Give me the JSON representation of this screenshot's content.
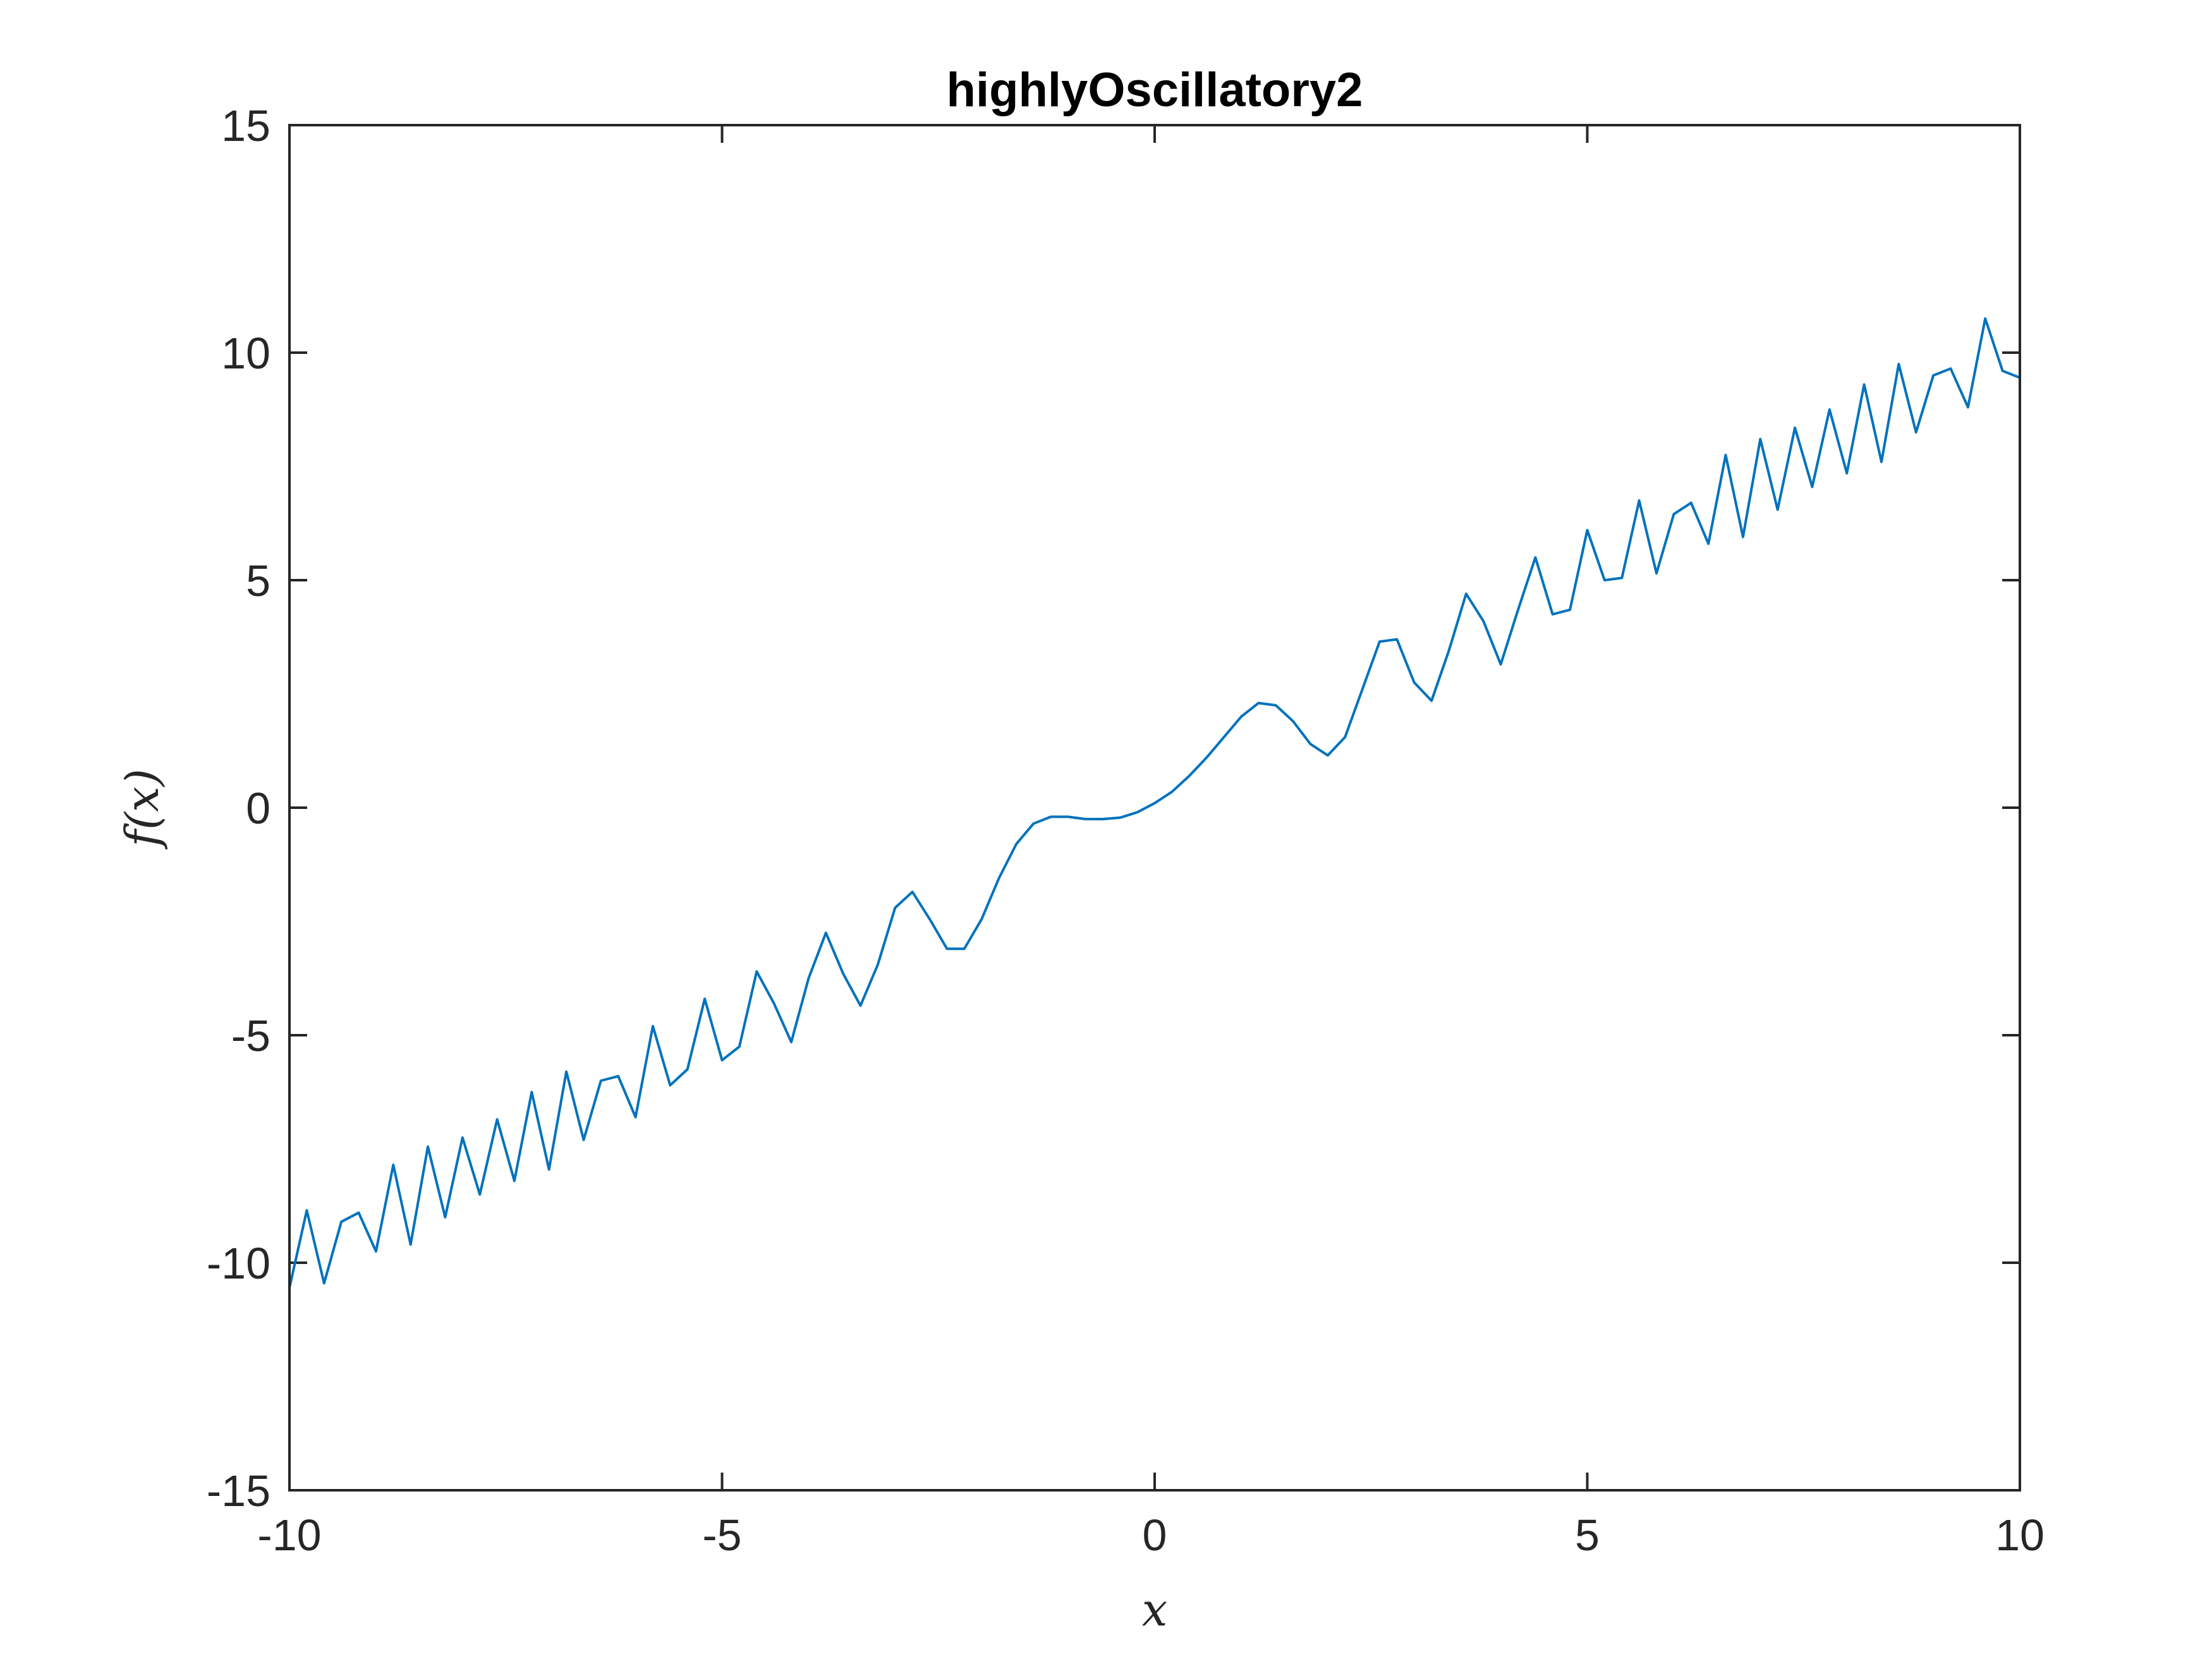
{
  "chart_data": {
    "type": "line",
    "title": "highlyOscillatory2",
    "xlabel": "x",
    "ylabel": "f(x)",
    "xlim": [
      -10,
      10
    ],
    "ylim": [
      -15,
      15
    ],
    "xticks": [
      -10,
      -5,
      0,
      5,
      10
    ],
    "yticks": [
      -15,
      -10,
      -5,
      0,
      5,
      10,
      15
    ],
    "xtick_labels": [
      "-10",
      "-5",
      "0",
      "5",
      "10"
    ],
    "ytick_labels": [
      "-15",
      "-10",
      "-5",
      "0",
      "5",
      "10",
      "15"
    ],
    "grid": false,
    "legend": "none",
    "colors": {
      "series": "#0072bd",
      "axes": "#262626",
      "background": "#ffffff"
    },
    "series": [
      {
        "x": [
          -10.0,
          -9.8,
          -9.6,
          -9.4,
          -9.2,
          -9.0,
          -8.8,
          -8.6,
          -8.4,
          -8.2,
          -8.0,
          -7.8,
          -7.6,
          -7.4,
          -7.2,
          -7.0,
          -6.8,
          -6.6,
          -6.4,
          -6.2,
          -6.0,
          -5.8,
          -5.6,
          -5.4,
          -5.2,
          -5.0,
          -4.8,
          -4.6,
          -4.4,
          -4.2,
          -4.0,
          -3.8,
          -3.6,
          -3.4,
          -3.2,
          -3.0,
          -2.8,
          -2.6,
          -2.4,
          -2.2,
          -2.0,
          -1.8,
          -1.6,
          -1.4,
          -1.2,
          -1.0,
          -0.8,
          -0.6,
          -0.4,
          -0.2,
          0.0,
          0.2,
          0.4,
          0.6,
          0.8,
          1.0,
          1.2,
          1.4,
          1.6,
          1.8,
          2.0,
          2.2,
          2.4,
          2.6,
          2.8,
          3.0,
          3.2,
          3.4,
          3.6,
          3.8,
          4.0,
          4.2,
          4.4,
          4.6,
          4.8,
          5.0,
          5.2,
          5.4,
          5.6,
          5.8,
          6.0,
          6.2,
          6.4,
          6.6,
          6.8,
          7.0,
          7.2,
          7.4,
          7.6,
          7.8,
          8.0,
          8.2,
          8.4,
          8.6,
          8.8,
          9.0,
          9.2,
          9.4,
          9.6,
          9.8,
          10.0
        ],
        "y": [
          -10.55,
          -8.85,
          -10.45,
          -9.1,
          -8.9,
          -9.75,
          -7.85,
          -9.6,
          -7.45,
          -9.0,
          -7.25,
          -8.5,
          -6.85,
          -8.2,
          -6.25,
          -7.95,
          -5.8,
          -7.3,
          -6.0,
          -5.9,
          -6.8,
          -4.8,
          -6.1,
          -5.75,
          -4.2,
          -5.55,
          -5.25,
          -3.6,
          -4.3,
          -5.15,
          -3.75,
          -2.75,
          -3.65,
          -4.35,
          -3.45,
          -2.2,
          -1.85,
          -2.45,
          -3.1,
          -3.1,
          -2.45,
          -1.55,
          -0.8,
          -0.35,
          -0.2,
          -0.2,
          -0.25,
          -0.25,
          -0.22,
          -0.1,
          0.1,
          0.35,
          0.7,
          1.1,
          1.55,
          2.0,
          2.3,
          2.25,
          1.9,
          1.4,
          1.15,
          1.55,
          2.6,
          3.65,
          3.7,
          2.75,
          2.35,
          3.45,
          4.7,
          4.1,
          3.15,
          4.35,
          5.5,
          4.25,
          4.35,
          6.1,
          5.0,
          5.05,
          6.75,
          5.15,
          6.45,
          6.7,
          5.8,
          7.75,
          5.95,
          8.1,
          6.55,
          8.35,
          7.05,
          8.75,
          7.35,
          9.3,
          7.6,
          9.75,
          8.25,
          9.5,
          9.65,
          8.8,
          10.75,
          9.6,
          9.45
        ]
      }
    ]
  }
}
